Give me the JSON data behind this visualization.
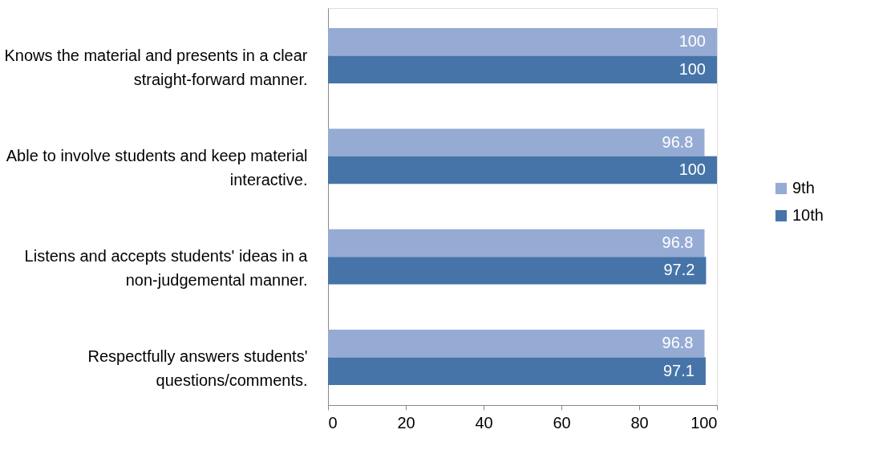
{
  "chart_data": {
    "type": "bar",
    "orientation": "horizontal",
    "categories": [
      "Knows the material and presents in a clear straight-forward manner.",
      "Able to involve students and keep material interactive.",
      "Listens and accepts students' ideas in a non-judgemental manner.",
      "Respectfully answers students' questions/comments."
    ],
    "series": [
      {
        "name": "9th",
        "color": "#95abd4",
        "values": [
          100,
          96.8,
          96.8,
          96.8
        ]
      },
      {
        "name": "10th",
        "color": "#4674a8",
        "values": [
          100,
          100,
          97.2,
          97.1
        ]
      }
    ],
    "xlim": [
      0,
      100
    ],
    "xticks": [
      0,
      20,
      40,
      60,
      80,
      100
    ],
    "data_labels": true,
    "legend": "right",
    "grid": false
  }
}
